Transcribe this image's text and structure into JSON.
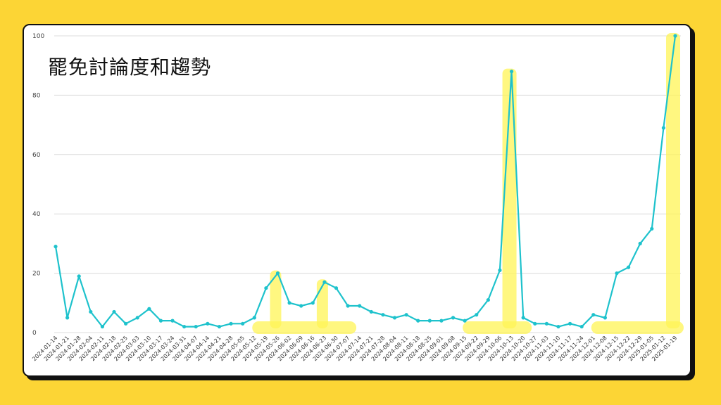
{
  "chart_data": {
    "type": "line",
    "title": "罷免討論度和趨勢",
    "xlabel": "",
    "ylabel": "",
    "ylim": [
      0,
      100
    ],
    "yticks": [
      0,
      20,
      40,
      60,
      80,
      100
    ],
    "grid": true,
    "colors": {
      "line": "#1EC2CC",
      "highlight": "#FFF455",
      "background": "#FCD535"
    },
    "x": [
      "2024-01-14",
      "2024-01-21",
      "2024-01-28",
      "2024-02-04",
      "2024-02-11",
      "2024-02-18",
      "2024-02-25",
      "2024-03-03",
      "2024-03-10",
      "2024-03-17",
      "2024-03-24",
      "2024-03-31",
      "2024-04-07",
      "2024-04-14",
      "2024-04-21",
      "2024-04-28",
      "2024-05-05",
      "2024-05-12",
      "2024-05-19",
      "2024-05-26",
      "2024-06-02",
      "2024-06-09",
      "2024-06-16",
      "2024-06-23",
      "2024-06-30",
      "2024-07-07",
      "2024-07-14",
      "2024-07-21",
      "2024-07-28",
      "2024-08-04",
      "2024-08-11",
      "2024-08-18",
      "2024-08-25",
      "2024-09-01",
      "2024-09-08",
      "2024-09-15",
      "2024-09-22",
      "2024-09-29",
      "2024-10-06",
      "2024-10-13",
      "2024-10-20",
      "2024-10-27",
      "2024-11-03",
      "2024-11-10",
      "2024-11-17",
      "2024-11-24",
      "2024-12-01",
      "2024-12-08",
      "2024-12-15",
      "2024-12-22",
      "2024-12-29",
      "2025-01-05",
      "2025-01-12",
      "2025-01-19"
    ],
    "series": [
      {
        "values": [
          29,
          5,
          19,
          7,
          2,
          7,
          3,
          5,
          8,
          4,
          4,
          2,
          2,
          3,
          2,
          3,
          3,
          5,
          15,
          20,
          10,
          9,
          10,
          17,
          15,
          9,
          9,
          7,
          6,
          5,
          6,
          4,
          4,
          4,
          5,
          4,
          6,
          11,
          21,
          88,
          5,
          3,
          3,
          2,
          3,
          2,
          6,
          5,
          20,
          22,
          30,
          35,
          69,
          100
        ]
      }
    ],
    "highlights": [
      {
        "from": "2024-05-12",
        "to": "2024-07-07"
      },
      {
        "from": "2024-09-15",
        "to": "2024-10-20"
      },
      {
        "from": "2024-12-01",
        "to": "2025-01-19"
      }
    ]
  }
}
